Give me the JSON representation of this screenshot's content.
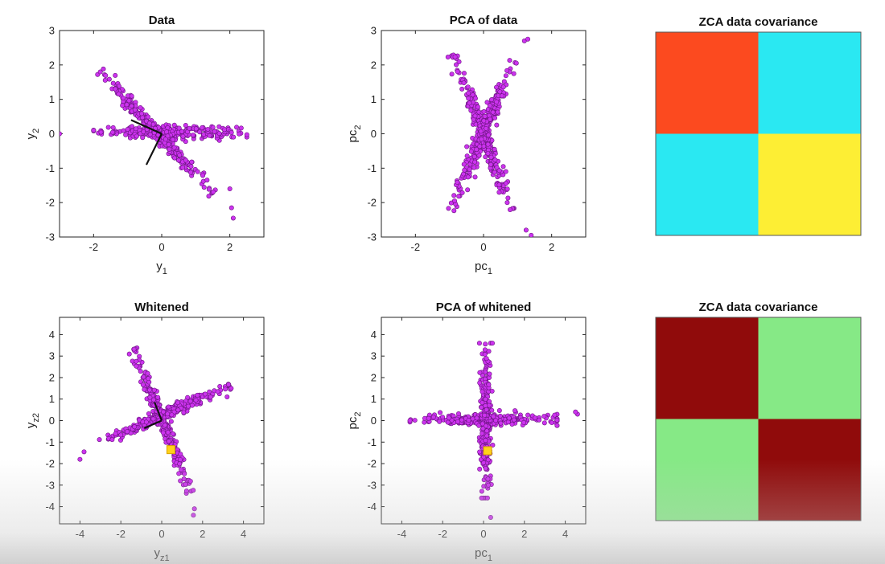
{
  "chart_data": [
    {
      "id": "data",
      "type": "scatter",
      "title": "Data",
      "xlabel": "y",
      "xlabel_sub": "1",
      "ylabel": "y",
      "ylabel_sub": "2",
      "xlim": [
        -3,
        3
      ],
      "ylim": [
        -3,
        3
      ],
      "xticks": [
        -2,
        0,
        2
      ],
      "yticks": [
        -3,
        -2,
        -1,
        0,
        1,
        2,
        3
      ],
      "grid": false,
      "point_color": "#cc33ee",
      "clusters": [
        {
          "shape": "line",
          "from": [
            -2.0,
            0.05
          ],
          "to": [
            2.5,
            0.05
          ],
          "n": 260,
          "spread": 0.09
        },
        {
          "shape": "line",
          "from": [
            -1.8,
            1.8
          ],
          "to": [
            1.5,
            -1.7
          ],
          "n": 280,
          "spread": 0.09
        }
      ],
      "points": [
        [
          -3.0,
          0.0
        ],
        [
          -2.0,
          0.1
        ],
        [
          2.0,
          -1.6
        ],
        [
          2.05,
          -2.15
        ],
        [
          2.1,
          -2.45
        ]
      ],
      "vectors": [
        [
          [
            0,
            0
          ],
          [
            -0.9,
            0.4
          ]
        ],
        [
          [
            0,
            0
          ],
          [
            -0.45,
            -0.9
          ]
        ]
      ]
    },
    {
      "id": "pca-data",
      "type": "scatter",
      "title": "PCA of data",
      "xlabel": "pc",
      "xlabel_sub": "1",
      "ylabel": "pc",
      "ylabel_sub": "2",
      "xlim": [
        -3,
        3
      ],
      "ylim": [
        -3,
        3
      ],
      "xticks": [
        -2,
        0,
        2
      ],
      "yticks": [
        -3,
        -2,
        -1,
        0,
        1,
        2,
        3
      ],
      "grid": false,
      "point_color": "#cc33ee",
      "clusters": [
        {
          "shape": "line",
          "from": [
            -0.85,
            2.3
          ],
          "to": [
            0.8,
            -2.2
          ],
          "n": 260,
          "spread": 0.09
        },
        {
          "shape": "line",
          "from": [
            -0.95,
            -2.2
          ],
          "to": [
            0.85,
            2.1
          ],
          "n": 260,
          "spread": 0.09
        }
      ],
      "points": [
        [
          1.2,
          2.7
        ],
        [
          1.3,
          2.75
        ],
        [
          1.25,
          -2.8
        ],
        [
          1.4,
          -2.95
        ]
      ],
      "vectors": []
    },
    {
      "id": "cov-data",
      "type": "heatmap",
      "title": "ZCA data covariance",
      "matrix_colors": [
        [
          "#fc4a1f",
          "#2ae8f2"
        ],
        [
          "#2ae8f2",
          "#fdee34"
        ]
      ]
    },
    {
      "id": "whitened",
      "type": "scatter",
      "title": "Whitened",
      "xlabel": "y",
      "xlabel_sub": "z1",
      "ylabel": "y",
      "ylabel_sub": "z2",
      "xlim": [
        -5,
        5
      ],
      "ylim": [
        -4.8,
        4.8
      ],
      "xticks": [
        -4,
        -2,
        0,
        2,
        4
      ],
      "yticks": [
        -4,
        -3,
        -2,
        -1,
        0,
        1,
        2,
        3,
        4
      ],
      "grid": false,
      "point_color": "#cc33ee",
      "clusters": [
        {
          "shape": "line",
          "from": [
            -3.0,
            -1.0
          ],
          "to": [
            3.3,
            1.6
          ],
          "n": 280,
          "spread": 0.13
        },
        {
          "shape": "line",
          "from": [
            -1.4,
            3.3
          ],
          "to": [
            1.4,
            -3.3
          ],
          "n": 280,
          "spread": 0.13
        }
      ],
      "points": [
        [
          -4.0,
          -1.8
        ],
        [
          -3.8,
          -1.45
        ],
        [
          1.6,
          -4.1
        ],
        [
          1.55,
          -4.4
        ],
        [
          3.4,
          1.5
        ],
        [
          3.2,
          1.1
        ]
      ],
      "vectors": [
        [
          [
            0,
            0
          ],
          [
            -0.35,
            0.85
          ]
        ],
        [
          [
            0,
            0
          ],
          [
            -0.85,
            -0.35
          ]
        ]
      ],
      "highlight": {
        "x": 0.45,
        "y": -1.35,
        "color": "#ffd21a"
      }
    },
    {
      "id": "pca-whitened",
      "type": "scatter",
      "title": "PCA of whitened",
      "xlabel": "pc",
      "xlabel_sub": "1",
      "ylabel": "pc",
      "ylabel_sub": "2",
      "xlim": [
        -5,
        5
      ],
      "ylim": [
        -4.8,
        4.8
      ],
      "xticks": [
        -4,
        -2,
        0,
        2,
        4
      ],
      "yticks": [
        -4,
        -3,
        -2,
        -1,
        0,
        1,
        2,
        3,
        4
      ],
      "grid": false,
      "point_color": "#cc33ee",
      "clusters": [
        {
          "shape": "line",
          "from": [
            -3.6,
            0.05
          ],
          "to": [
            3.6,
            0.05
          ],
          "n": 280,
          "spread": 0.13
        },
        {
          "shape": "line",
          "from": [
            0.1,
            3.6
          ],
          "to": [
            0.1,
            -3.6
          ],
          "n": 280,
          "spread": 0.13
        }
      ],
      "points": [
        [
          4.6,
          0.3
        ],
        [
          4.5,
          0.4
        ],
        [
          -3.6,
          0.0
        ],
        [
          0.35,
          -4.5
        ]
      ],
      "vectors": [],
      "highlight": {
        "x": 0.2,
        "y": -1.4,
        "color": "#ffd21a"
      }
    },
    {
      "id": "cov-whitened",
      "type": "heatmap",
      "title": "ZCA data covariance",
      "matrix_colors": [
        [
          "#900b0b",
          "#86e986"
        ],
        [
          "#86e986",
          "#900b0b"
        ]
      ]
    }
  ]
}
